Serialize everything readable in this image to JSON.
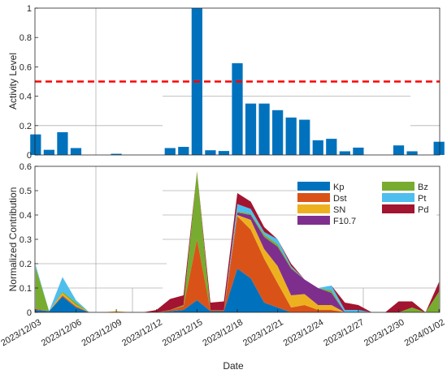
{
  "chart_data": [
    {
      "type": "bar",
      "panel": "top",
      "ylabel": "Activity Level",
      "ylim": [
        0,
        1
      ],
      "yticks": [
        "0",
        "0.2",
        "0.4",
        "0.6",
        "0.8",
        "1"
      ],
      "threshold": {
        "value": 0.5,
        "color": "#ff0000",
        "style": "dashed"
      },
      "bar_color": "#0072bd",
      "x": [
        "2023/12/03",
        "2023/12/04",
        "2023/12/05",
        "2023/12/06",
        "2023/12/07",
        "2023/12/08",
        "2023/12/09",
        "2023/12/10",
        "2023/12/11",
        "2023/12/12",
        "2023/12/13",
        "2023/12/14",
        "2023/12/15",
        "2023/12/16",
        "2023/12/17",
        "2023/12/18",
        "2023/12/19",
        "2023/12/20",
        "2023/12/21",
        "2023/12/22",
        "2023/12/23",
        "2023/12/24",
        "2023/12/25",
        "2023/12/26",
        "2023/12/27",
        "2023/12/28",
        "2023/12/29",
        "2023/12/30",
        "2023/12/31",
        "2024/01/01",
        "2024/01/02"
      ],
      "values": [
        0.14,
        0.035,
        0.155,
        0.047,
        0,
        0,
        0.008,
        0,
        0,
        0,
        0.047,
        0.055,
        1.0,
        0.032,
        0.027,
        0.625,
        0.35,
        0.35,
        0.305,
        0.255,
        0.24,
        0.1,
        0.11,
        0.025,
        0.05,
        0,
        0,
        0.065,
        0.025,
        0,
        0.09
      ],
      "grid": "partial"
    },
    {
      "type": "area",
      "stacked": true,
      "panel": "bottom",
      "xlabel": "Date",
      "ylabel": "Normalized Contribution",
      "ylim": [
        0,
        0.6
      ],
      "yticks": [
        "0",
        "0.1",
        "0.2",
        "0.3",
        "0.4",
        "0.5",
        "0.6"
      ],
      "xticks": [
        "2023/12/03",
        "2023/12/06",
        "2023/12/09",
        "2023/12/12",
        "2023/12/15",
        "2023/12/18",
        "2023/12/21",
        "2023/12/24",
        "2023/12/27",
        "2023/12/30",
        "2024/01/02"
      ],
      "legend_position": "top-right",
      "x": [
        "2023/12/03",
        "2023/12/04",
        "2023/12/05",
        "2023/12/06",
        "2023/12/07",
        "2023/12/08",
        "2023/12/09",
        "2023/12/10",
        "2023/12/11",
        "2023/12/12",
        "2023/12/13",
        "2023/12/14",
        "2023/12/15",
        "2023/12/16",
        "2023/12/17",
        "2023/12/18",
        "2023/12/19",
        "2023/12/20",
        "2023/12/21",
        "2023/12/22",
        "2023/12/23",
        "2023/12/24",
        "2023/12/25",
        "2023/12/26",
        "2023/12/27",
        "2023/12/28",
        "2023/12/29",
        "2023/12/30",
        "2023/12/31",
        "2024/01/01",
        "2024/01/02"
      ],
      "series": [
        {
          "name": "Kp",
          "color": "#0072bd",
          "values": [
            0.01,
            0.005,
            0.065,
            0.02,
            0,
            0,
            0,
            0,
            0,
            0,
            0.005,
            0.01,
            0.05,
            0.005,
            0.005,
            0.18,
            0.14,
            0.04,
            0.02,
            0,
            0,
            0,
            0,
            0,
            0,
            0,
            0,
            0,
            0,
            0,
            0
          ]
        },
        {
          "name": "Dst",
          "color": "#d95319",
          "values": [
            0.005,
            0,
            0.005,
            0.005,
            0,
            0,
            0,
            0,
            0,
            0,
            0.005,
            0.015,
            0.25,
            0.005,
            0.005,
            0.215,
            0.2,
            0.18,
            0.1,
            0.02,
            0.03,
            0.01,
            0.01,
            0,
            0,
            0,
            0,
            0,
            0,
            0,
            0
          ]
        },
        {
          "name": "SN",
          "color": "#edb120",
          "values": [
            0,
            0,
            0.01,
            0.005,
            0,
            0,
            0.005,
            0,
            0,
            0,
            0,
            0,
            0,
            0,
            0,
            0.005,
            0.04,
            0.04,
            0.07,
            0.05,
            0.045,
            0.02,
            0.02,
            0,
            0,
            0,
            0,
            0,
            0,
            0,
            0
          ]
        },
        {
          "name": "F10.7",
          "color": "#7e2f8e",
          "values": [
            0,
            0,
            0,
            0,
            0,
            0,
            0,
            0,
            0,
            0,
            0,
            0,
            0,
            0,
            0,
            0.01,
            0.02,
            0.05,
            0.08,
            0.11,
            0.06,
            0.07,
            0.05,
            0,
            0,
            0,
            0,
            0,
            0,
            0,
            0
          ]
        },
        {
          "name": "Bz",
          "color": "#77ac30",
          "values": [
            0.17,
            0,
            0.005,
            0.01,
            0,
            0,
            0,
            0,
            0,
            0,
            0,
            0.005,
            0.28,
            0,
            0,
            0.005,
            0.005,
            0.01,
            0.01,
            0.005,
            0,
            0,
            0.01,
            0,
            0,
            0,
            0,
            0,
            0.02,
            0,
            0.085
          ]
        },
        {
          "name": "Pt",
          "color": "#4dbeee",
          "values": [
            0.01,
            0,
            0.06,
            0.01,
            0,
            0,
            0,
            0,
            0,
            0,
            0,
            0,
            0,
            0,
            0,
            0.03,
            0.02,
            0.01,
            0.02,
            0.005,
            0,
            0,
            0.02,
            0.01,
            0.01,
            0,
            0,
            0,
            0,
            0,
            0
          ]
        },
        {
          "name": "Pd",
          "color": "#a2142f",
          "values": [
            0,
            0,
            0,
            0,
            0,
            0,
            0,
            0,
            0,
            0.01,
            0.045,
            0.04,
            0,
            0.03,
            0.035,
            0.045,
            0.03,
            0.02,
            0,
            0.01,
            0,
            0,
            0,
            0.03,
            0.02,
            0,
            0,
            0.045,
            0.025,
            0,
            0.04
          ]
        }
      ]
    }
  ]
}
